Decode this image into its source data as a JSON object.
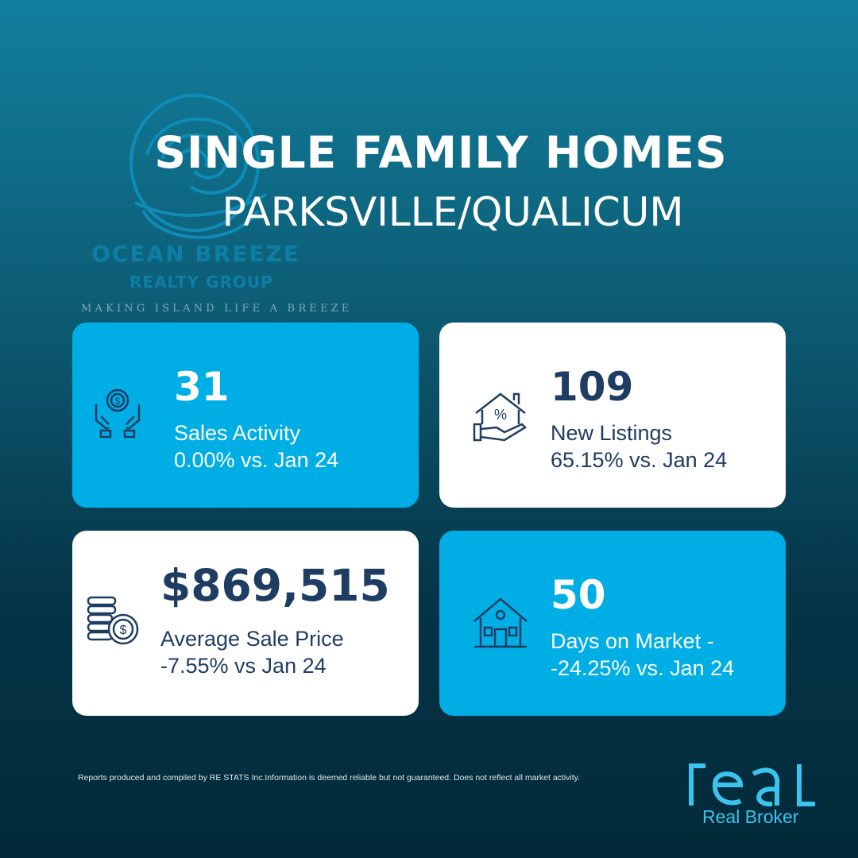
{
  "header": {
    "title": "SINGLE FAMILY HOMES",
    "subtitle": "PARKSVILLE/QUALICUM"
  },
  "brand": {
    "name": "OCEAN BREEZE",
    "sub": "REALTY GROUP",
    "tagline": "MAKING ISLAND LIFE A BREEZE"
  },
  "colors": {
    "card_blue": "#00aee6",
    "text_dark": "#1f3d63",
    "accent": "#3bc3ee"
  },
  "cards": [
    {
      "value": "31",
      "label": "Sales Activity",
      "change": "0.00% vs. Jan 24",
      "icon": "hands-coin-icon",
      "theme": "blue"
    },
    {
      "value": "109",
      "label": "New Listings",
      "change": "65.15% vs. Jan 24",
      "icon": "house-percent-hand-icon",
      "theme": "white"
    },
    {
      "value": "$869,515",
      "label": "Average Sale Price",
      "change": "-7.55% vs Jan 24",
      "icon": "coin-stack-icon",
      "theme": "white"
    },
    {
      "value": "50",
      "label": "Days on Market -",
      "change": "-24.25% vs. Jan 24",
      "icon": "house-icon",
      "theme": "blue"
    }
  ],
  "footer": {
    "disclaimer": "Reports produced and compiled by RE  STATS Inc.Information is deemed reliable but not guaranteed. Does not reflect all market activity.",
    "broker_logo": "real",
    "broker_name": "Real Broker"
  }
}
